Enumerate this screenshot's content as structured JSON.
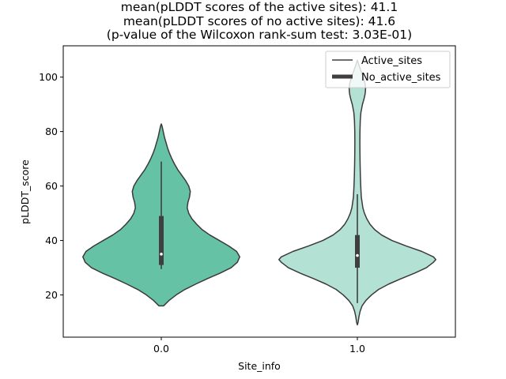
{
  "chart_data": {
    "type": "violin",
    "title_lines": [
      "mean(pLDDT scores of the active sites): 41.1",
      "mean(pLDDT scores of no active sites): 41.6",
      "(p-value of the Wilcoxon rank-sum test: 3.03E-01)"
    ],
    "xlabel": "Site_info",
    "ylabel": "pLDDT_score",
    "ylim": [
      4.5,
      111.5
    ],
    "yticks": [
      20,
      40,
      60,
      80,
      100
    ],
    "categories": [
      "0.0",
      "1.0"
    ],
    "legend": {
      "location": "upper right",
      "entries": [
        {
          "label": "Active_sites",
          "style": "thin-line"
        },
        {
          "label": "No_active_sites",
          "style": "thick-line"
        }
      ]
    },
    "violins": [
      {
        "category": "0.0",
        "color": "#66c2a5",
        "edge_color": "#3a3a3a",
        "density_halfwidth": [
          [
            16,
            0.03
          ],
          [
            18,
            0.1
          ],
          [
            20,
            0.19
          ],
          [
            22,
            0.3
          ],
          [
            24,
            0.44
          ],
          [
            26,
            0.59
          ],
          [
            28,
            0.75
          ],
          [
            30,
            0.89
          ],
          [
            32,
            0.97
          ],
          [
            34,
            1.0
          ],
          [
            36,
            0.96
          ],
          [
            38,
            0.86
          ],
          [
            40,
            0.74
          ],
          [
            42,
            0.62
          ],
          [
            44,
            0.52
          ],
          [
            46,
            0.45
          ],
          [
            48,
            0.39
          ],
          [
            50,
            0.35
          ],
          [
            52,
            0.33
          ],
          [
            54,
            0.34
          ],
          [
            56,
            0.36
          ],
          [
            58,
            0.37
          ],
          [
            60,
            0.35
          ],
          [
            62,
            0.31
          ],
          [
            64,
            0.26
          ],
          [
            66,
            0.21
          ],
          [
            68,
            0.17
          ],
          [
            70,
            0.135
          ],
          [
            72,
            0.105
          ],
          [
            74,
            0.08
          ],
          [
            76,
            0.06
          ],
          [
            78,
            0.04
          ],
          [
            80,
            0.025
          ],
          [
            82,
            0.01
          ],
          [
            82.8,
            0.0
          ]
        ],
        "min": 29.5,
        "q1": 31,
        "median": 35,
        "q3": 49,
        "max": 69
      },
      {
        "category": "1.0",
        "color": "#b3e2d4",
        "edge_color": "#3a3a3a",
        "density_halfwidth": [
          [
            9,
            0.0
          ],
          [
            10,
            0.01
          ],
          [
            12,
            0.02
          ],
          [
            14,
            0.035
          ],
          [
            16,
            0.06
          ],
          [
            18,
            0.11
          ],
          [
            20,
            0.18
          ],
          [
            22,
            0.27
          ],
          [
            24,
            0.4
          ],
          [
            26,
            0.56
          ],
          [
            28,
            0.73
          ],
          [
            30,
            0.88
          ],
          [
            32,
            0.97
          ],
          [
            33,
            1.0
          ],
          [
            34,
            0.97
          ],
          [
            36,
            0.82
          ],
          [
            38,
            0.62
          ],
          [
            40,
            0.44
          ],
          [
            42,
            0.31
          ],
          [
            44,
            0.22
          ],
          [
            46,
            0.16
          ],
          [
            48,
            0.12
          ],
          [
            50,
            0.09
          ],
          [
            52,
            0.07
          ],
          [
            54,
            0.06
          ],
          [
            56,
            0.05
          ],
          [
            60,
            0.043
          ],
          [
            64,
            0.038
          ],
          [
            68,
            0.035
          ],
          [
            72,
            0.033
          ],
          [
            76,
            0.032
          ],
          [
            80,
            0.033
          ],
          [
            84,
            0.037
          ],
          [
            87,
            0.045
          ],
          [
            90,
            0.065
          ],
          [
            92,
            0.085
          ],
          [
            94,
            0.1
          ],
          [
            96,
            0.105
          ],
          [
            98,
            0.095
          ],
          [
            100,
            0.075
          ],
          [
            102,
            0.05
          ],
          [
            104,
            0.025
          ],
          [
            105.5,
            0.008
          ],
          [
            106.2,
            0.0
          ]
        ],
        "min": 17,
        "q1": 30,
        "median": 34.5,
        "q3": 42,
        "max": 57
      }
    ]
  }
}
